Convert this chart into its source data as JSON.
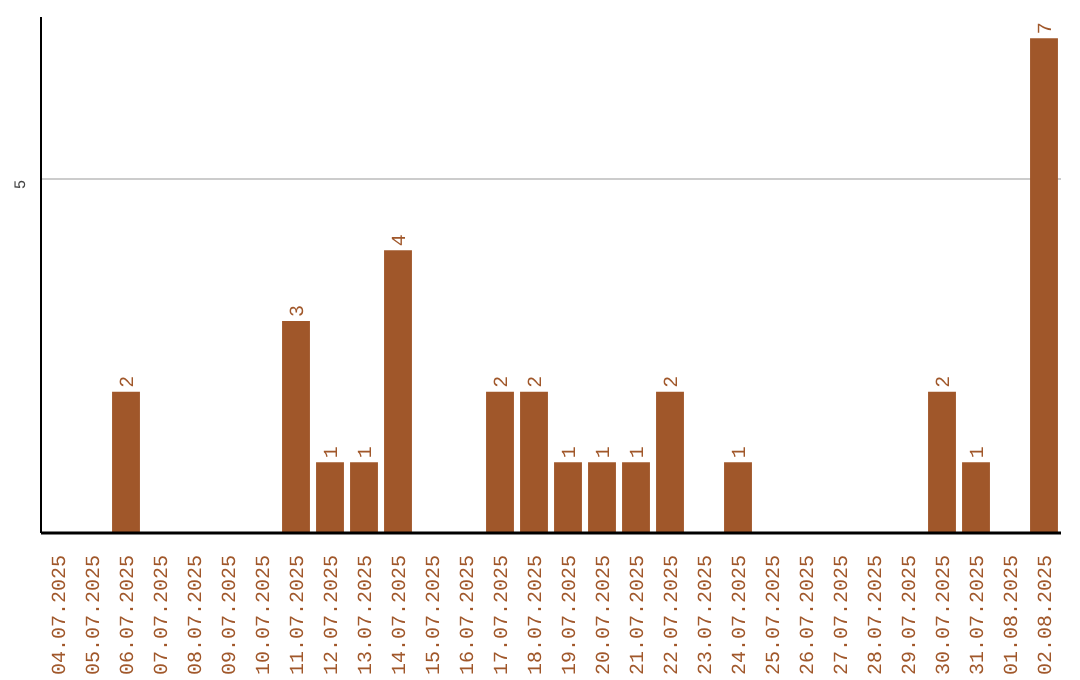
{
  "chart_data": {
    "type": "bar",
    "categories": [
      "04.07.2025",
      "05.07.2025",
      "06.07.2025",
      "07.07.2025",
      "08.07.2025",
      "09.07.2025",
      "10.07.2025",
      "11.07.2025",
      "12.07.2025",
      "13.07.2025",
      "14.07.2025",
      "15.07.2025",
      "16.07.2025",
      "17.07.2025",
      "18.07.2025",
      "19.07.2025",
      "20.07.2025",
      "21.07.2025",
      "22.07.2025",
      "23.07.2025",
      "24.07.2025",
      "25.07.2025",
      "26.07.2025",
      "27.07.2025",
      "28.07.2025",
      "29.07.2025",
      "30.07.2025",
      "31.07.2025",
      "01.08.2025",
      "02.08.2025"
    ],
    "values": [
      0,
      0,
      2,
      0,
      0,
      0,
      0,
      3,
      1,
      1,
      4,
      0,
      0,
      2,
      2,
      1,
      1,
      1,
      2,
      0,
      1,
      0,
      0,
      0,
      0,
      0,
      2,
      1,
      0,
      7
    ],
    "value_labels": [
      null,
      null,
      "2",
      null,
      null,
      null,
      null,
      "3",
      "1",
      "1",
      "4",
      null,
      null,
      "2",
      "2",
      "1",
      "1",
      "1",
      "2",
      null,
      "1",
      null,
      null,
      null,
      null,
      null,
      "2",
      "1",
      null,
      "7"
    ],
    "color": "#a0572a",
    "ylim": [
      0,
      7.3
    ],
    "yticks": [
      5
    ],
    "grid": "y"
  }
}
